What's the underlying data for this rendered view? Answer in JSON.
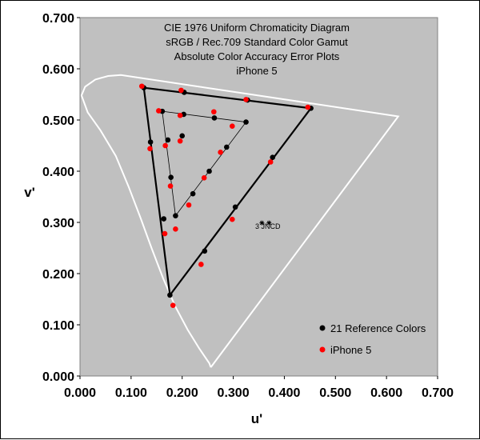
{
  "chart_data": {
    "type": "scatter",
    "title": [
      "CIE 1976 Uniform Chromaticity Diagram",
      "sRGB / Rec.709 Standard Color Gamut",
      "Absolute Color Accuracy Error Plots",
      "iPhone 5"
    ],
    "xlabel": "u'",
    "ylabel": "v'",
    "xlim": [
      0,
      0.7
    ],
    "ylim": [
      0,
      0.7
    ],
    "x_ticks": [
      "0.000",
      "0.100",
      "0.200",
      "0.300",
      "0.400",
      "0.500",
      "0.600",
      "0.700"
    ],
    "y_ticks": [
      "0.000",
      "0.100",
      "0.200",
      "0.300",
      "0.400",
      "0.500",
      "0.600",
      "0.700"
    ],
    "grid": false,
    "plot_background": "#c0c0c0",
    "legend_position": "bottom-right",
    "annotation": "3 JNCD",
    "jncd_markers": [
      [
        0.356,
        0.299
      ],
      [
        0.37,
        0.299
      ]
    ],
    "spectral_locus": [
      [
        0.256,
        0.017
      ],
      [
        0.253,
        0.025
      ],
      [
        0.234,
        0.053
      ],
      [
        0.211,
        0.09
      ],
      [
        0.187,
        0.135
      ],
      [
        0.163,
        0.19
      ],
      [
        0.14,
        0.25
      ],
      [
        0.118,
        0.31
      ],
      [
        0.095,
        0.37
      ],
      [
        0.07,
        0.43
      ],
      [
        0.04,
        0.48
      ],
      [
        0.015,
        0.515
      ],
      [
        0.003,
        0.548
      ],
      [
        0.01,
        0.565
      ],
      [
        0.03,
        0.579
      ],
      [
        0.055,
        0.586
      ],
      [
        0.08,
        0.588
      ],
      [
        0.623,
        0.507
      ],
      [
        0.256,
        0.017
      ]
    ],
    "gamut_outer": [
      [
        0.125,
        0.563
      ],
      [
        0.452,
        0.523
      ],
      [
        0.176,
        0.158
      ],
      [
        0.125,
        0.563
      ]
    ],
    "gamut_inner": [
      [
        0.161,
        0.517
      ],
      [
        0.325,
        0.496
      ],
      [
        0.187,
        0.313
      ],
      [
        0.161,
        0.517
      ]
    ],
    "series": [
      {
        "name": "21 Reference Colors",
        "color": "#000000",
        "points": [
          [
            0.125,
            0.563
          ],
          [
            0.204,
            0.554
          ],
          [
            0.328,
            0.539
          ],
          [
            0.452,
            0.523
          ],
          [
            0.377,
            0.427
          ],
          [
            0.304,
            0.33
          ],
          [
            0.244,
            0.244
          ],
          [
            0.176,
            0.158
          ],
          [
            0.164,
            0.307
          ],
          [
            0.138,
            0.457
          ],
          [
            0.161,
            0.517
          ],
          [
            0.203,
            0.511
          ],
          [
            0.263,
            0.504
          ],
          [
            0.325,
            0.496
          ],
          [
            0.287,
            0.447
          ],
          [
            0.253,
            0.4
          ],
          [
            0.221,
            0.356
          ],
          [
            0.187,
            0.313
          ],
          [
            0.178,
            0.388
          ],
          [
            0.172,
            0.461
          ],
          [
            0.2,
            0.469
          ]
        ]
      },
      {
        "name": "iPhone 5",
        "color": "#ff0000",
        "points": [
          [
            0.121,
            0.566
          ],
          [
            0.198,
            0.558
          ],
          [
            0.325,
            0.54
          ],
          [
            0.446,
            0.525
          ],
          [
            0.373,
            0.418
          ],
          [
            0.298,
            0.306
          ],
          [
            0.237,
            0.218
          ],
          [
            0.182,
            0.138
          ],
          [
            0.166,
            0.278
          ],
          [
            0.137,
            0.444
          ],
          [
            0.154,
            0.518
          ],
          [
            0.196,
            0.509
          ],
          [
            0.298,
            0.488
          ],
          [
            0.275,
            0.437
          ],
          [
            0.243,
            0.387
          ],
          [
            0.213,
            0.334
          ],
          [
            0.187,
            0.287
          ],
          [
            0.177,
            0.371
          ],
          [
            0.167,
            0.45
          ],
          [
            0.196,
            0.459
          ],
          [
            0.262,
            0.516
          ]
        ]
      }
    ]
  }
}
